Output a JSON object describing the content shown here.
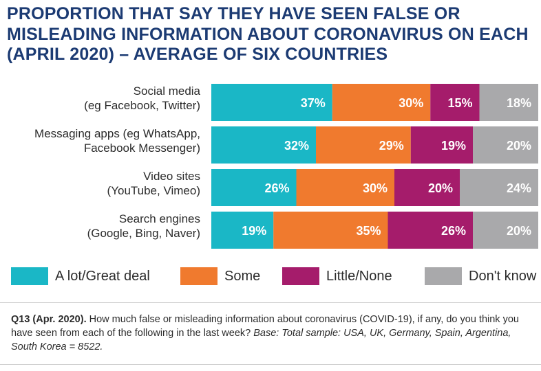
{
  "chart_data": {
    "type": "bar",
    "orientation": "horizontal",
    "stacked": true,
    "title": "PROPORTION THAT SAY THEY HAVE SEEN FALSE OR MISLEADING INFORMATION ABOUT CORONAVIRUS ON EACH (APRIL 2020) – AVERAGE OF SIX COUNTRIES",
    "categories": [
      [
        "Social media",
        "(eg Facebook, Twitter)"
      ],
      [
        "Messaging apps (eg WhatsApp,",
        "Facebook Messenger)"
      ],
      [
        "Video sites",
        "(YouTube, Vimeo)"
      ],
      [
        "Search engines",
        "(Google, Bing, Naver)"
      ]
    ],
    "series": [
      {
        "name": "A lot/Great deal",
        "color": "#1ab7c6",
        "values": [
          37,
          32,
          26,
          19
        ],
        "labels": [
          "37%",
          "32%",
          "26%",
          "19%"
        ]
      },
      {
        "name": "Some",
        "color": "#f07a2e",
        "values": [
          30,
          29,
          30,
          35
        ],
        "labels": [
          "30%",
          "29%",
          "30%",
          "35%"
        ]
      },
      {
        "name": "Little/None",
        "color": "#a51c6b",
        "values": [
          15,
          19,
          20,
          26
        ],
        "labels": [
          "15%",
          "19%",
          "20%",
          "26%"
        ]
      },
      {
        "name": "Don't know",
        "color": "#a9a9ab",
        "values": [
          18,
          20,
          24,
          20
        ],
        "labels": [
          "18%",
          "20%",
          "24%",
          "20%"
        ]
      }
    ],
    "xlim": [
      0,
      100
    ],
    "grid": false,
    "legend_position": "bottom"
  },
  "footnote": {
    "question": "Q13 (Apr. 2020).",
    "text": " How much false or misleading information about coronavirus (COVID-19), if any, do you think you have seen from each of the following in the last week? ",
    "base": "Base: Total sample: USA, UK, Germany, Spain, Argentina, South Korea = 8522."
  }
}
